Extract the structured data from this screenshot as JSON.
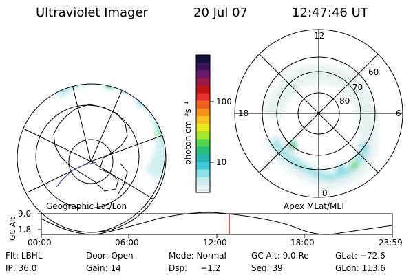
{
  "header": {
    "instrument": "Ultraviolet Imager",
    "date": "20 Jul 07",
    "time": "12:47:46 UT"
  },
  "left_panel": {
    "caption": "Geographic Lat/Lon"
  },
  "right_panel": {
    "caption": "Apex MLat/MLT",
    "mlt_labels": [
      "12",
      "18",
      "6",
      "0"
    ],
    "mlat_labels": [
      "60",
      "70",
      "80"
    ]
  },
  "colorbar": {
    "label": "photon cm⁻²s⁻¹",
    "ticks": [
      "100",
      "10"
    ],
    "colors": [
      "#101038",
      "#3a1258",
      "#6a1a6a",
      "#9a1a4a",
      "#c01818",
      "#e63030",
      "#f06020",
      "#f29018",
      "#f8c020",
      "#eaea20",
      "#a8e82a",
      "#52d650",
      "#2ac07a",
      "#28b6b0",
      "#40c8d8",
      "#8ce0e6",
      "#c8ecee",
      "#e6f2f2"
    ]
  },
  "altitude_plot": {
    "ylabel": "GC Alt",
    "y_ticks": [
      "9.0",
      "1.8"
    ],
    "x_ticks": [
      "00:00",
      "06:00",
      "12:00",
      "18:00",
      "23:59"
    ],
    "marker_color": "#e02020"
  },
  "info": {
    "row1": [
      "Flt: LBHL",
      "Door: Open",
      "Mode: Normal",
      "GC Alt: 9.0 Re",
      "GLat: −72.6"
    ],
    "row2": [
      "IP: 36.0",
      "Gain: 14",
      "Dsp:     −1.2",
      "Seq: 39",
      "GLon: 113.6"
    ]
  }
}
